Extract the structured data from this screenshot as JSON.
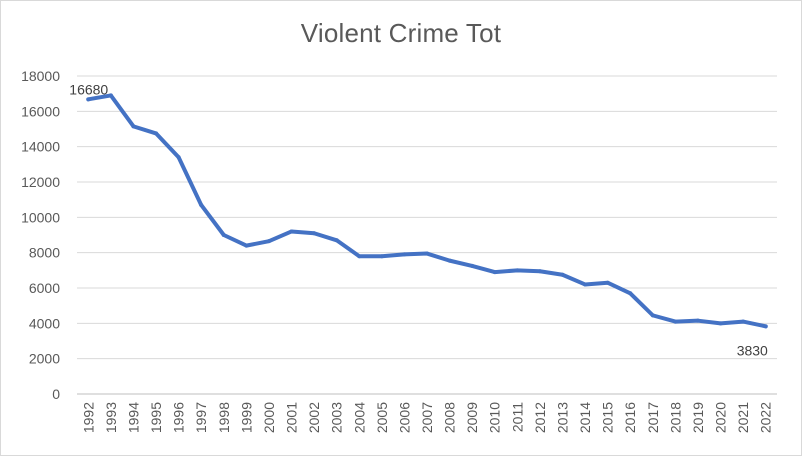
{
  "chart_data": {
    "type": "line",
    "title": "Violent Crime Tot",
    "xlabel": "",
    "ylabel": "",
    "ylim": [
      0,
      18000
    ],
    "y_ticks": [
      0,
      2000,
      4000,
      6000,
      8000,
      10000,
      12000,
      14000,
      16000,
      18000
    ],
    "grid": true,
    "legend": "none",
    "line_color": "#4472C4",
    "categories": [
      "1992",
      "1993",
      "1994",
      "1995",
      "1996",
      "1997",
      "1998",
      "1999",
      "2000",
      "2001",
      "2002",
      "2003",
      "2004",
      "2005",
      "2006",
      "2007",
      "2008",
      "2009",
      "2010",
      "2011",
      "2012",
      "2013",
      "2014",
      "2015",
      "2016",
      "2017",
      "2018",
      "2019",
      "2020",
      "2021",
      "2022"
    ],
    "series": [
      {
        "values": [
          16680,
          16900,
          15150,
          14750,
          13400,
          10700,
          9000,
          8400,
          8650,
          9200,
          9100,
          8700,
          7800,
          7800,
          7900,
          7950,
          7550,
          7250,
          6900,
          7000,
          6950,
          6750,
          6200,
          6300,
          5700,
          4450,
          4100,
          4150,
          4000,
          4100,
          3830
        ]
      }
    ],
    "data_labels": [
      {
        "index": 0,
        "text": "16680"
      },
      {
        "index": 30,
        "text": "3830"
      }
    ]
  }
}
